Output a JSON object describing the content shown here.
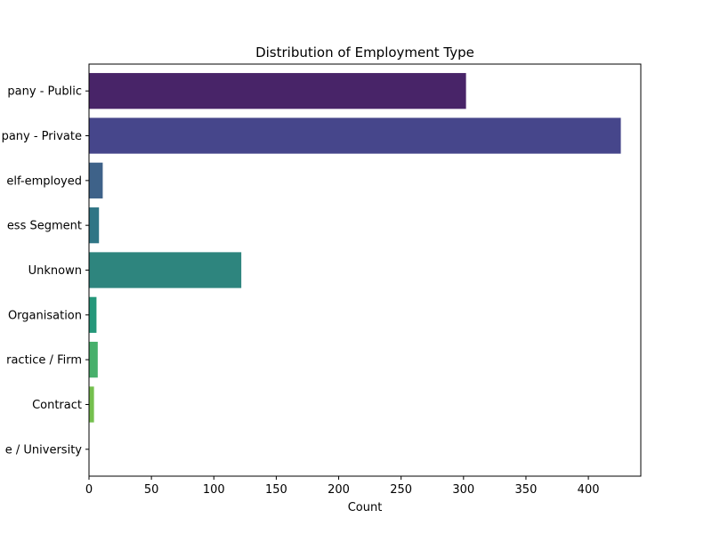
{
  "chart_data": {
    "type": "bar",
    "orientation": "horizontal",
    "title": "Distribution of Employment Type",
    "xlabel": "Count",
    "ylabel": "",
    "xlim": [
      0,
      442
    ],
    "xticks": [
      0,
      50,
      100,
      150,
      200,
      250,
      300,
      350,
      400
    ],
    "grid": false,
    "categories": [
      "pany - Public",
      "pany - Private",
      "elf-employed",
      "ess Segment",
      "Unknown",
      "Organisation",
      "ractice / Firm",
      "Contract",
      "e / University"
    ],
    "values": [
      302,
      426,
      11,
      8,
      122,
      6,
      7,
      4,
      0
    ],
    "colors": [
      "#482468",
      "#46468b",
      "#3e6289",
      "#2f7585",
      "#2e857e",
      "#25977a",
      "#47b06b",
      "#75c04e",
      "#bcd52b"
    ]
  }
}
